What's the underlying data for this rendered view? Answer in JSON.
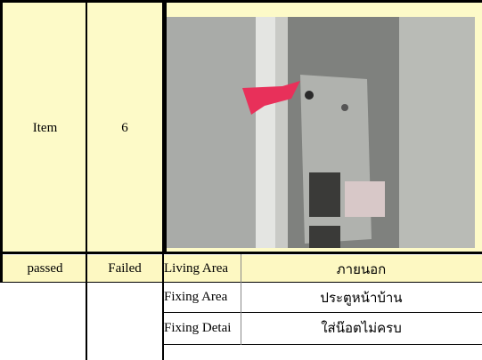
{
  "table": {
    "header": [
      "Item",
      "6"
    ],
    "rows": [
      [
        "passed",
        "Failed",
        "Living Area",
        "ภายนอก"
      ],
      [
        null,
        null,
        "Fixing Area",
        "ประตูหน้าบ้าน"
      ],
      [
        null,
        null,
        "Fixing Detai",
        "ใส่น๊อตไม่ครบ"
      ]
    ]
  }
}
